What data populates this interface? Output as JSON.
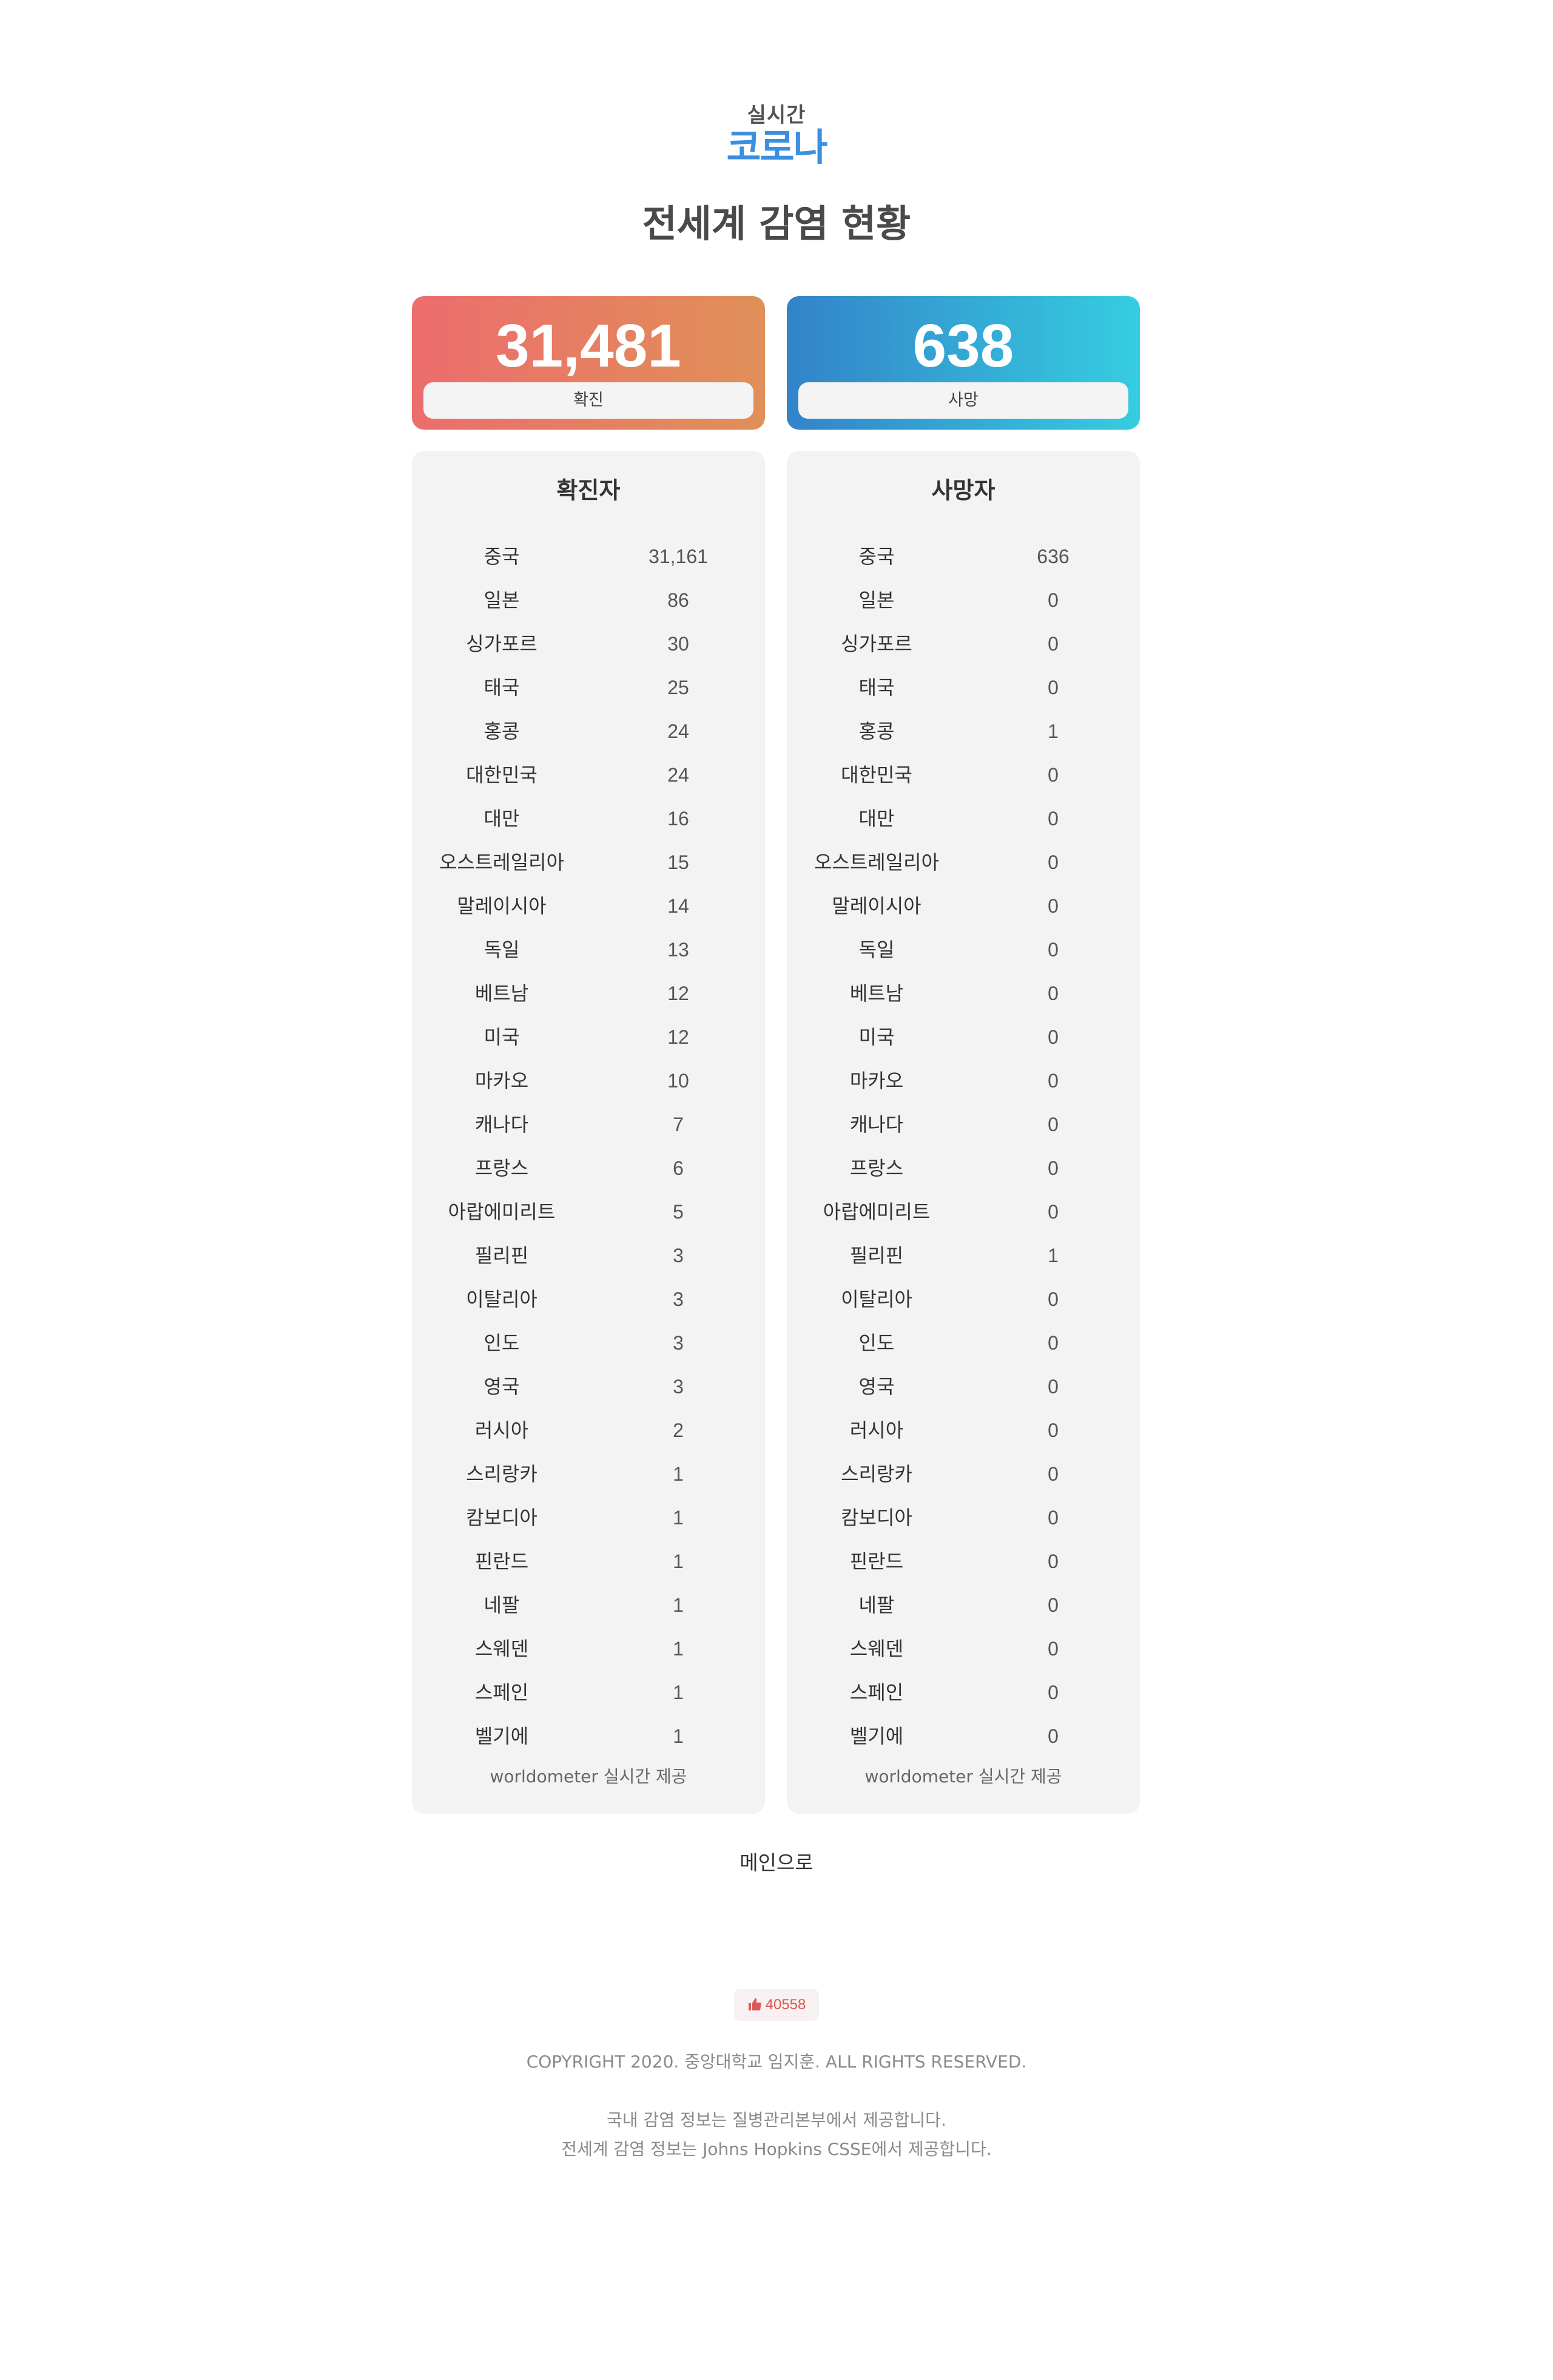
{
  "logo": {
    "small": "실시간",
    "big": "코로나"
  },
  "title": "전세계 감염 현황",
  "stats": {
    "confirmed": {
      "value": "31,481",
      "label": "확진"
    },
    "deaths": {
      "value": "638",
      "label": "사망"
    }
  },
  "confirmed_table": {
    "title": "확진자",
    "rows": [
      {
        "country": "중국",
        "value": "31,161"
      },
      {
        "country": "일본",
        "value": "86"
      },
      {
        "country": "싱가포르",
        "value": "30"
      },
      {
        "country": "태국",
        "value": "25"
      },
      {
        "country": "홍콩",
        "value": "24"
      },
      {
        "country": "대한민국",
        "value": "24"
      },
      {
        "country": "대만",
        "value": "16"
      },
      {
        "country": "오스트레일리아",
        "value": "15"
      },
      {
        "country": "말레이시아",
        "value": "14"
      },
      {
        "country": "독일",
        "value": "13"
      },
      {
        "country": "베트남",
        "value": "12"
      },
      {
        "country": "미국",
        "value": "12"
      },
      {
        "country": "마카오",
        "value": "10"
      },
      {
        "country": "캐나다",
        "value": "7"
      },
      {
        "country": "프랑스",
        "value": "6"
      },
      {
        "country": "아랍에미리트",
        "value": "5"
      },
      {
        "country": "필리핀",
        "value": "3"
      },
      {
        "country": "이탈리아",
        "value": "3"
      },
      {
        "country": "인도",
        "value": "3"
      },
      {
        "country": "영국",
        "value": "3"
      },
      {
        "country": "러시아",
        "value": "2"
      },
      {
        "country": "스리랑카",
        "value": "1"
      },
      {
        "country": "캄보디아",
        "value": "1"
      },
      {
        "country": "핀란드",
        "value": "1"
      },
      {
        "country": "네팔",
        "value": "1"
      },
      {
        "country": "스웨덴",
        "value": "1"
      },
      {
        "country": "스페인",
        "value": "1"
      },
      {
        "country": "벨기에",
        "value": "1"
      }
    ],
    "source": "worldometer 실시간 제공"
  },
  "deaths_table": {
    "title": "사망자",
    "rows": [
      {
        "country": "중국",
        "value": "636"
      },
      {
        "country": "일본",
        "value": "0"
      },
      {
        "country": "싱가포르",
        "value": "0"
      },
      {
        "country": "태국",
        "value": "0"
      },
      {
        "country": "홍콩",
        "value": "1"
      },
      {
        "country": "대한민국",
        "value": "0"
      },
      {
        "country": "대만",
        "value": "0"
      },
      {
        "country": "오스트레일리아",
        "value": "0"
      },
      {
        "country": "말레이시아",
        "value": "0"
      },
      {
        "country": "독일",
        "value": "0"
      },
      {
        "country": "베트남",
        "value": "0"
      },
      {
        "country": "미국",
        "value": "0"
      },
      {
        "country": "마카오",
        "value": "0"
      },
      {
        "country": "캐나다",
        "value": "0"
      },
      {
        "country": "프랑스",
        "value": "0"
      },
      {
        "country": "아랍에미리트",
        "value": "0"
      },
      {
        "country": "필리핀",
        "value": "1"
      },
      {
        "country": "이탈리아",
        "value": "0"
      },
      {
        "country": "인도",
        "value": "0"
      },
      {
        "country": "영국",
        "value": "0"
      },
      {
        "country": "러시아",
        "value": "0"
      },
      {
        "country": "스리랑카",
        "value": "0"
      },
      {
        "country": "캄보디아",
        "value": "0"
      },
      {
        "country": "핀란드",
        "value": "0"
      },
      {
        "country": "네팔",
        "value": "0"
      },
      {
        "country": "스웨덴",
        "value": "0"
      },
      {
        "country": "스페인",
        "value": "0"
      },
      {
        "country": "벨기에",
        "value": "0"
      }
    ],
    "source": "worldometer 실시간 제공"
  },
  "main_link": "메인으로",
  "like": {
    "icon": "thumbs-up-icon",
    "count": "40558",
    "color": "#e05555"
  },
  "footer": {
    "copyright": "COPYRIGHT 2020. 중앙대학교 임지훈. ALL RIGHTS RESERVED.",
    "note1": "국내 감염 정보는 질병관리본부에서 제공합니다.",
    "note2": "전세계 감염 정보는 Johns Hopkins CSSE에서 제공합니다."
  },
  "colors": {
    "confirmed_gradient": [
      "#ec6d6d",
      "#e09058"
    ],
    "deaths_gradient": [
      "#3383c9",
      "#35cde0"
    ],
    "logo_blue": "#3b8fe0"
  }
}
